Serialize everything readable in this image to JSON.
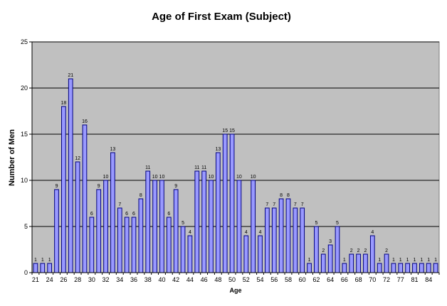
{
  "chart_data": {
    "type": "bar",
    "title": "Age of First Exam (Subject)",
    "xlabel": "Age",
    "ylabel": "Number of Men",
    "ylim": [
      0,
      25
    ],
    "yticks": [
      0,
      5,
      10,
      15,
      20,
      25
    ],
    "grid": true,
    "legend": "none",
    "colors": {
      "plot_background": "#c0c0c0",
      "bar_fill": "#9999ff",
      "bar_stroke": "#000080",
      "gridline": "#000000"
    },
    "categories": [
      "21",
      "23",
      "24",
      "25",
      "26",
      "27",
      "28",
      "29",
      "30",
      "31",
      "32",
      "33",
      "34",
      "35",
      "36",
      "37",
      "38",
      "39",
      "40",
      "41",
      "42",
      "43",
      "44",
      "45",
      "46",
      "47",
      "48",
      "49",
      "50",
      "51",
      "52",
      "53",
      "54",
      "55",
      "56",
      "57",
      "58",
      "59",
      "60",
      "61",
      "62",
      "63",
      "64",
      "65",
      "66",
      "67",
      "68",
      "69",
      "70",
      "71",
      "72",
      "74",
      "77",
      "79",
      "81",
      "83",
      "84",
      "87"
    ],
    "xtick_labels": [
      "21",
      "",
      "24",
      "",
      "26",
      "",
      "28",
      "",
      "30",
      "",
      "32",
      "",
      "34",
      "",
      "36",
      "",
      "38",
      "",
      "40",
      "",
      "42",
      "",
      "44",
      "",
      "46",
      "",
      "48",
      "",
      "50",
      "",
      "52",
      "",
      "54",
      "",
      "56",
      "",
      "58",
      "",
      "60",
      "",
      "62",
      "",
      "64",
      "",
      "66",
      "",
      "68",
      "",
      "70",
      "",
      "72",
      "",
      "77",
      "",
      "81",
      "",
      "84",
      ""
    ],
    "values": [
      1,
      1,
      1,
      9,
      18,
      21,
      12,
      16,
      6,
      9,
      10,
      13,
      7,
      6,
      6,
      8,
      11,
      10,
      10,
      6,
      9,
      5,
      4,
      11,
      11,
      10,
      13,
      15,
      15,
      10,
      4,
      10,
      4,
      7,
      7,
      8,
      8,
      7,
      7,
      1,
      5,
      2,
      3,
      5,
      1,
      2,
      2,
      2,
      4,
      1,
      2,
      1,
      1,
      1,
      1,
      1,
      1,
      1
    ]
  }
}
